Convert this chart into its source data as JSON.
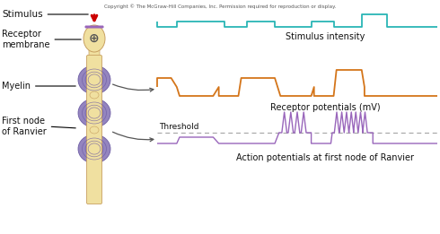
{
  "copyright_text": "Copyright © The McGraw-Hill Companies, Inc. Permission required for reproduction or display.",
  "labels": {
    "stimulus": "Stimulus",
    "receptor_membrane": "Receptor\nmembrane",
    "myelin": "Myelin",
    "first_node": "First node\nof Ranvier",
    "stimulus_intensity": "Stimulus intensity",
    "receptor_potentials": "Receptor potentials (mV)",
    "action_potentials": "Action potentials at first node of Ranvier",
    "threshold": "Threshold"
  },
  "colors": {
    "teal": "#2ab5b5",
    "orange": "#d4751a",
    "purple": "#9966bb",
    "dashed": "#aaaaaa",
    "body_fill": "#f0e0a0",
    "myelin_fill": "#8878b8",
    "background": "#ffffff",
    "arrow_red": "#cc0000",
    "text_dark": "#333333",
    "label_dark": "#111111"
  },
  "figsize": [
    4.9,
    2.61
  ],
  "dpi": 100
}
